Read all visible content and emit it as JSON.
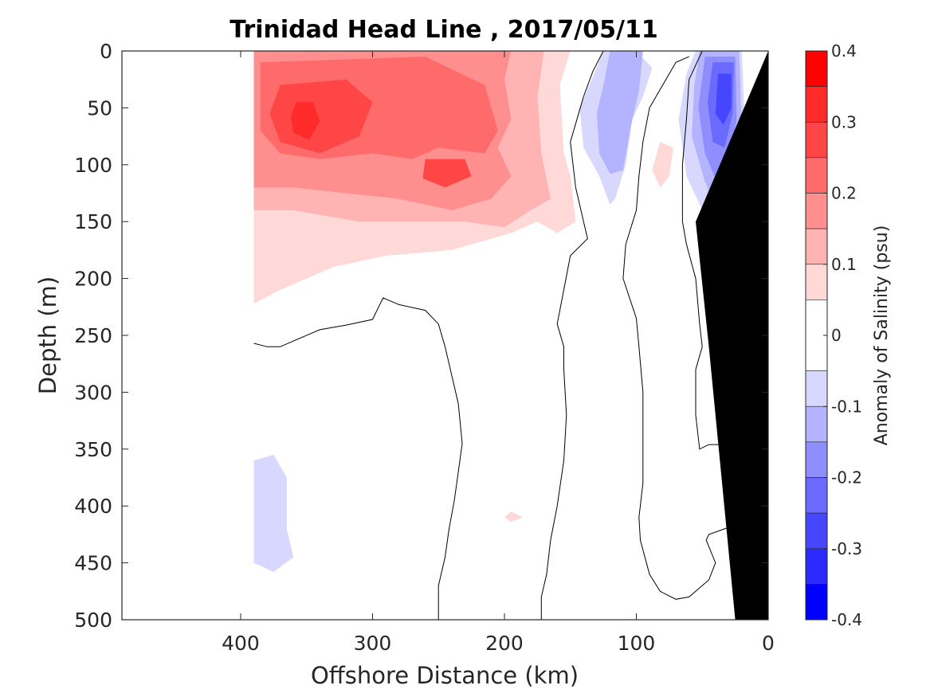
{
  "chart_data": {
    "type": "heatmap",
    "title": "Trinidad Head Line , 2017/05/11",
    "xlabel": "Offshore Distance (km)",
    "ylabel": "Depth (m)",
    "colorbar_label": "Anomaly of Salinity (psu)",
    "xlim": [
      490,
      0
    ],
    "ylim": [
      500,
      0
    ],
    "x_ticks": [
      400,
      300,
      200,
      100,
      0
    ],
    "y_ticks": [
      0,
      50,
      100,
      150,
      200,
      250,
      300,
      350,
      400,
      450,
      500
    ],
    "colorbar_ticks": [
      0.4,
      0.3,
      0.2,
      0.1,
      0,
      -0.1,
      -0.2,
      -0.3,
      -0.4
    ],
    "colorbar_range": [
      -0.4,
      0.4
    ],
    "zero_contour": "black line",
    "bathymetry_color": "#000000",
    "color_levels": [
      {
        "min": 0.35,
        "max": 0.4,
        "color": "#ff0000"
      },
      {
        "min": 0.3,
        "max": 0.35,
        "color": "#ff2b2b"
      },
      {
        "min": 0.25,
        "max": 0.3,
        "color": "#ff4646"
      },
      {
        "min": 0.2,
        "max": 0.25,
        "color": "#ff6a6a"
      },
      {
        "min": 0.15,
        "max": 0.2,
        "color": "#ff8e8e"
      },
      {
        "min": 0.1,
        "max": 0.15,
        "color": "#ffb3b3"
      },
      {
        "min": 0.05,
        "max": 0.1,
        "color": "#ffd8d8"
      },
      {
        "min": -0.05,
        "max": 0.05,
        "color": "#ffffff"
      },
      {
        "min": -0.1,
        "max": -0.05,
        "color": "#d8d8ff"
      },
      {
        "min": -0.15,
        "max": -0.1,
        "color": "#b3b3ff"
      },
      {
        "min": -0.2,
        "max": -0.15,
        "color": "#8e8eff"
      },
      {
        "min": -0.25,
        "max": -0.2,
        "color": "#6a6aff"
      },
      {
        "min": -0.3,
        "max": -0.25,
        "color": "#4646ff"
      },
      {
        "min": -0.35,
        "max": -0.3,
        "color": "#2b2bff"
      },
      {
        "min": -0.4,
        "max": -0.35,
        "color": "#0000ff"
      }
    ],
    "regions": [
      {
        "name": "positive-anomaly-region-1",
        "level": 0.075,
        "points": [
          [
            390,
            0
          ],
          [
            150,
            0
          ],
          [
            158,
            30
          ],
          [
            155,
            90
          ],
          [
            150,
            110
          ],
          [
            146,
            150
          ],
          [
            160,
            160
          ],
          [
            175,
            150
          ],
          [
            195,
            160
          ],
          [
            240,
            175
          ],
          [
            290,
            180
          ],
          [
            330,
            190
          ],
          [
            370,
            210
          ],
          [
            390,
            222
          ]
        ]
      },
      {
        "name": "positive-anomaly-region-2",
        "level": 0.125,
        "points": [
          [
            390,
            0
          ],
          [
            170,
            0
          ],
          [
            175,
            40
          ],
          [
            172,
            90
          ],
          [
            165,
            130
          ],
          [
            180,
            140
          ],
          [
            200,
            155
          ],
          [
            230,
            150
          ],
          [
            270,
            150
          ],
          [
            310,
            150
          ],
          [
            360,
            140
          ],
          [
            390,
            140
          ]
        ]
      },
      {
        "name": "positive-anomaly-region-3",
        "level": 0.175,
        "points": [
          [
            390,
            0
          ],
          [
            195,
            0
          ],
          [
            200,
            25
          ],
          [
            195,
            60
          ],
          [
            205,
            85
          ],
          [
            195,
            110
          ],
          [
            210,
            130
          ],
          [
            240,
            140
          ],
          [
            280,
            130
          ],
          [
            320,
            125
          ],
          [
            360,
            120
          ],
          [
            390,
            120
          ]
        ]
      },
      {
        "name": "positive-anomaly-region-4",
        "level": 0.225,
        "points": [
          [
            385,
            10
          ],
          [
            260,
            5
          ],
          [
            215,
            30
          ],
          [
            205,
            70
          ],
          [
            215,
            90
          ],
          [
            250,
            85
          ],
          [
            270,
            95
          ],
          [
            300,
            90
          ],
          [
            340,
            95
          ],
          [
            370,
            90
          ],
          [
            385,
            70
          ]
        ]
      },
      {
        "name": "positive-anomaly-region-5",
        "level": 0.275,
        "points": [
          [
            370,
            30
          ],
          [
            320,
            25
          ],
          [
            300,
            45
          ],
          [
            310,
            75
          ],
          [
            340,
            90
          ],
          [
            370,
            80
          ],
          [
            378,
            55
          ]
        ]
      },
      {
        "name": "positive-anomaly-region-6",
        "level": 0.275,
        "points": [
          [
            260,
            95
          ],
          [
            230,
            95
          ],
          [
            225,
            110
          ],
          [
            245,
            120
          ],
          [
            262,
            112
          ]
        ]
      },
      {
        "name": "positive-anomaly-region-7",
        "level": 0.325,
        "points": [
          [
            358,
            45
          ],
          [
            345,
            45
          ],
          [
            340,
            62
          ],
          [
            348,
            78
          ],
          [
            360,
            72
          ],
          [
            362,
            58
          ]
        ]
      },
      {
        "name": "positive-anomaly-region-8",
        "level": 0.075,
        "points": [
          [
            82,
            80
          ],
          [
            72,
            85
          ],
          [
            75,
            110
          ],
          [
            82,
            120
          ],
          [
            88,
            105
          ]
        ]
      },
      {
        "name": "positive-anomaly-region-9",
        "level": 0.075,
        "points": [
          [
            195,
            405
          ],
          [
            186,
            410
          ],
          [
            195,
            414
          ],
          [
            200,
            410
          ]
        ]
      },
      {
        "name": "negative-anomaly-region-1",
        "level": -0.075,
        "points": [
          [
            125,
            0
          ],
          [
            100,
            0
          ],
          [
            88,
            15
          ],
          [
            95,
            40
          ],
          [
            103,
            60
          ],
          [
            108,
            100
          ],
          [
            116,
            130
          ],
          [
            120,
            135
          ],
          [
            128,
            110
          ],
          [
            140,
            85
          ],
          [
            143,
            50
          ],
          [
            132,
            20
          ]
        ]
      },
      {
        "name": "negative-anomaly-region-2",
        "level": -0.125,
        "points": [
          [
            120,
            0
          ],
          [
            95,
            0
          ],
          [
            98,
            35
          ],
          [
            104,
            65
          ],
          [
            110,
            105
          ],
          [
            120,
            108
          ],
          [
            128,
            90
          ],
          [
            130,
            55
          ],
          [
            124,
            25
          ]
        ]
      },
      {
        "name": "negative-anomaly-region-3",
        "level": -0.075,
        "points": [
          [
            55,
            0
          ],
          [
            20,
            0
          ],
          [
            18,
            60
          ],
          [
            25,
            110
          ],
          [
            30,
            150
          ],
          [
            38,
            178
          ],
          [
            46,
            150
          ],
          [
            62,
            110
          ],
          [
            68,
            60
          ],
          [
            62,
            20
          ]
        ]
      },
      {
        "name": "negative-anomaly-region-4",
        "level": -0.125,
        "points": [
          [
            52,
            0
          ],
          [
            22,
            0
          ],
          [
            20,
            70
          ],
          [
            28,
            120
          ],
          [
            38,
            140
          ],
          [
            48,
            115
          ],
          [
            58,
            75
          ],
          [
            56,
            30
          ]
        ]
      },
      {
        "name": "negative-anomaly-region-5",
        "level": -0.175,
        "points": [
          [
            48,
            5
          ],
          [
            25,
            5
          ],
          [
            24,
            60
          ],
          [
            30,
            100
          ],
          [
            40,
            112
          ],
          [
            48,
            90
          ],
          [
            53,
            50
          ]
        ]
      },
      {
        "name": "negative-anomaly-region-6",
        "level": -0.225,
        "points": [
          [
            42,
            10
          ],
          [
            26,
            10
          ],
          [
            27,
            55
          ],
          [
            33,
            85
          ],
          [
            42,
            80
          ],
          [
            46,
            45
          ]
        ]
      },
      {
        "name": "negative-anomaly-region-7",
        "level": -0.275,
        "points": [
          [
            38,
            20
          ],
          [
            28,
            20
          ],
          [
            28,
            50
          ],
          [
            34,
            65
          ],
          [
            40,
            55
          ]
        ]
      },
      {
        "name": "negative-anomaly-region-8",
        "level": -0.075,
        "points": [
          [
            390,
            360
          ],
          [
            375,
            355
          ],
          [
            365,
            375
          ],
          [
            365,
            420
          ],
          [
            360,
            445
          ],
          [
            375,
            458
          ],
          [
            390,
            450
          ]
        ]
      }
    ],
    "contours": [
      {
        "name": "zero-contour-1",
        "points": [
          [
            390,
            257
          ],
          [
            380,
            260
          ],
          [
            370,
            260
          ],
          [
            360,
            255
          ],
          [
            340,
            245
          ],
          [
            320,
            241
          ],
          [
            300,
            236
          ],
          [
            292,
            217
          ],
          [
            280,
            223
          ],
          [
            260,
            228
          ],
          [
            250,
            240
          ],
          [
            245,
            260
          ],
          [
            240,
            285
          ],
          [
            235,
            310
          ],
          [
            232,
            345
          ],
          [
            235,
            370
          ],
          [
            238,
            395
          ],
          [
            242,
            420
          ],
          [
            245,
            445
          ],
          [
            250,
            470
          ],
          [
            250,
            500
          ]
        ]
      },
      {
        "name": "zero-contour-2",
        "points": [
          [
            125,
            0
          ],
          [
            133,
            18
          ],
          [
            140,
            40
          ],
          [
            145,
            60
          ],
          [
            150,
            80
          ],
          [
            146,
            120
          ],
          [
            140,
            150
          ],
          [
            137,
            165
          ],
          [
            150,
            180
          ],
          [
            155,
            210
          ],
          [
            160,
            240
          ],
          [
            155,
            260
          ],
          [
            155,
            280
          ],
          [
            153,
            320
          ],
          [
            155,
            360
          ],
          [
            160,
            400
          ],
          [
            165,
            430
          ],
          [
            168,
            460
          ],
          [
            172,
            480
          ],
          [
            172,
            500
          ]
        ]
      },
      {
        "name": "zero-contour-3",
        "points": [
          [
            60,
            5
          ],
          [
            70,
            10
          ],
          [
            80,
            30
          ],
          [
            90,
            50
          ],
          [
            95,
            80
          ],
          [
            98,
            110
          ],
          [
            100,
            140
          ],
          [
            108,
            170
          ],
          [
            110,
            200
          ],
          [
            100,
            235
          ],
          [
            98,
            260
          ],
          [
            95,
            300
          ],
          [
            95,
            350
          ],
          [
            95,
            380
          ],
          [
            98,
            410
          ],
          [
            97,
            430
          ],
          [
            90,
            460
          ],
          [
            82,
            475
          ],
          [
            70,
            482
          ],
          [
            60,
            480
          ],
          [
            45,
            465
          ],
          [
            40,
            450
          ],
          [
            47,
            430
          ],
          [
            45,
            425
          ],
          [
            28,
            418
          ],
          [
            20,
            408
          ],
          [
            18,
            395
          ],
          [
            15,
            375
          ],
          [
            12,
            345
          ],
          [
            11,
            310
          ],
          [
            10,
            280
          ],
          [
            9,
            250
          ],
          [
            8,
            230
          ],
          [
            5,
            200
          ],
          [
            2,
            170
          ],
          [
            0,
            150
          ]
        ]
      },
      {
        "name": "zero-contour-4",
        "points": [
          [
            50,
            0
          ],
          [
            60,
            25
          ],
          [
            62,
            60
          ],
          [
            65,
            100
          ],
          [
            65,
            150
          ],
          [
            62,
            170
          ],
          [
            55,
            200
          ],
          [
            52,
            240
          ],
          [
            50,
            260
          ],
          [
            55,
            280
          ],
          [
            55,
            320
          ],
          [
            52,
            350
          ],
          [
            45,
            346
          ],
          [
            35,
            346
          ],
          [
            32,
            320
          ],
          [
            30,
            290
          ],
          [
            28,
            260
          ],
          [
            22,
            200
          ],
          [
            18,
            160
          ]
        ]
      }
    ],
    "bathymetry": [
      [
        0,
        0
      ],
      [
        0,
        500
      ],
      [
        25,
        500
      ],
      [
        35,
        380
      ],
      [
        45,
        260
      ],
      [
        55,
        150
      ],
      [
        0,
        0
      ]
    ],
    "colorbar_ticks_bound": true
  }
}
